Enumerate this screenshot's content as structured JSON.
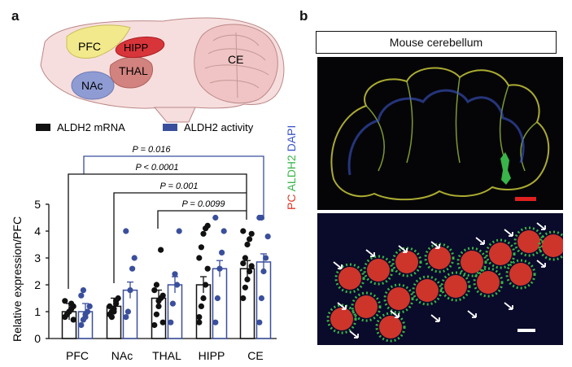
{
  "panels": {
    "a_label": "a",
    "b_label": "b"
  },
  "brain": {
    "regions": [
      "PFC",
      "HIPP",
      "CE",
      "THAL",
      "NAc"
    ],
    "colors": {
      "PFC": "#f2e98c",
      "HIPP": "#d8353a",
      "CE": "#f0c4c4",
      "THAL": "#d2837f",
      "NAc": "#8f9cd4",
      "outline": "#f6d9d9"
    }
  },
  "legend": {
    "mrna": "ALDH2 mRNA",
    "activity": "ALDH2 activity",
    "mrna_color": "#111111",
    "activity_color": "#3a4f9c"
  },
  "stats": {
    "brackets": [
      {
        "label": "P = 0.016",
        "color": "#3a4f9c"
      },
      {
        "label": "P < 0.0001",
        "color": "#111111"
      },
      {
        "label": "P = 0.001",
        "color": "#111111"
      },
      {
        "label": "P = 0.0099",
        "color": "#111111"
      }
    ]
  },
  "chart_data": {
    "type": "bar",
    "ylabel": "Relative expression/PFC",
    "ylim": [
      0,
      5
    ],
    "yticks": [
      "0",
      "1",
      "2",
      "3",
      "4",
      "5"
    ],
    "categories": [
      "PFC",
      "NAc",
      "THAL",
      "HIPP",
      "CE"
    ],
    "series": [
      {
        "name": "ALDH2 mRNA",
        "values": [
          1.0,
          1.2,
          1.5,
          2.0,
          2.6
        ],
        "points": [
          [
            0.8,
            0.9,
            1.0,
            1.1,
            1.2,
            1.4,
            0.9,
            1.0,
            1.3,
            0.7
          ],
          [
            0.9,
            1.0,
            1.1,
            1.3,
            1.5,
            1.2,
            0.8,
            1.0,
            1.4
          ],
          [
            0.5,
            0.9,
            1.2,
            1.5,
            1.6,
            1.8,
            2.0,
            1.4,
            3.3,
            0.6
          ],
          [
            0.8,
            1.2,
            1.5,
            2.0,
            2.6,
            3.0,
            3.4,
            3.9,
            4.1,
            4.2,
            0.6
          ],
          [
            1.5,
            1.9,
            2.2,
            2.5,
            2.7,
            2.8,
            3.0,
            3.5,
            3.7,
            3.9,
            4.0
          ]
        ]
      },
      {
        "name": "ALDH2 activity",
        "values": [
          1.0,
          1.8,
          2.0,
          2.6,
          2.85
        ],
        "points": [
          [
            0.5,
            0.7,
            0.9,
            1.0,
            1.2,
            1.6,
            1.8,
            0.8
          ],
          [
            0.8,
            1.0,
            1.8,
            2.6,
            3.0,
            4.0
          ],
          [
            0.6,
            1.3,
            2.4,
            2.0,
            4.0
          ],
          [
            0.6,
            1.5,
            2.6,
            3.2,
            4.0,
            4.5
          ],
          [
            0.6,
            1.5,
            2.5,
            3.0,
            3.8,
            4.5,
            4.5
          ]
        ]
      }
    ]
  },
  "micrograph": {
    "title": "Mouse cerebellum",
    "stain_pc": "PC",
    "stain_aldh2": "ALDH2",
    "stain_dapi": "DAPI",
    "pc_color": "#e23a2a",
    "aldh2_color": "#39b54a",
    "dapi_color": "#3a55c8"
  }
}
